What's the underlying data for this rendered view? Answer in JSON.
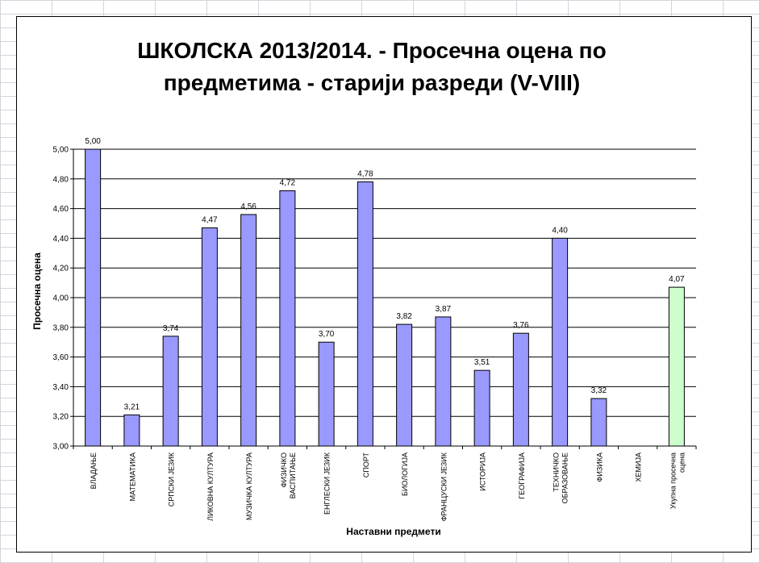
{
  "chart_data": {
    "type": "bar",
    "title_lines": [
      "ШКОЛСКА 2013/2014. - Просечна  оцена по",
      "предметима - старији разреди (V-VIII)"
    ],
    "xlabel": "Наставни предмети",
    "ylabel": "Просечна оцена",
    "ylim": [
      3.0,
      5.0
    ],
    "ytick_step": 0.2,
    "grid": true,
    "legend": "none",
    "categories": [
      [
        "ВЛАДАЊЕ"
      ],
      [
        "МАТЕМАТИКА"
      ],
      [
        "СРПСКИ ЈЕЗИК"
      ],
      [
        "ЛИКОВНА КУЛТУРА"
      ],
      [
        "МУЗИЧКА КУЛТУРА"
      ],
      [
        "ФИЗИЧКО",
        "ВАСПИТАЊЕ"
      ],
      [
        "ЕНГЛЕСКИ ЈЕЗИК"
      ],
      [
        "СПОРТ"
      ],
      [
        "БИОЛОГИЈА"
      ],
      [
        "ФРАНЦУСКИ ЈЕЗИК"
      ],
      [
        "ИСТОРИЈА"
      ],
      [
        "ГЕОГРАФИЈА"
      ],
      [
        "ТЕХНИЧКО",
        "ОБРАЗОВАЊЕ"
      ],
      [
        "ФИЗИКА"
      ],
      [
        "ХЕМИЈА"
      ],
      [
        "Укупна просечна",
        "оцена"
      ]
    ],
    "values": [
      5.0,
      3.21,
      3.74,
      4.47,
      4.56,
      4.72,
      3.7,
      4.78,
      3.82,
      3.87,
      3.51,
      3.76,
      4.4,
      3.32,
      3.0,
      4.07
    ],
    "data_labels": [
      "5,00",
      "3,21",
      "3,74",
      "4,47",
      "4,56",
      "4,72",
      "3,70",
      "4,78",
      "3,82",
      "3,87",
      "3,51",
      "3,76",
      "4,40",
      "3,32",
      "",
      "4,07"
    ],
    "bar_colors": [
      "#9999ff",
      "#9999ff",
      "#9999ff",
      "#9999ff",
      "#9999ff",
      "#9999ff",
      "#9999ff",
      "#9999ff",
      "#9999ff",
      "#9999ff",
      "#9999ff",
      "#9999ff",
      "#9999ff",
      "#9999ff",
      "#9999ff",
      "#ccffcc"
    ]
  }
}
